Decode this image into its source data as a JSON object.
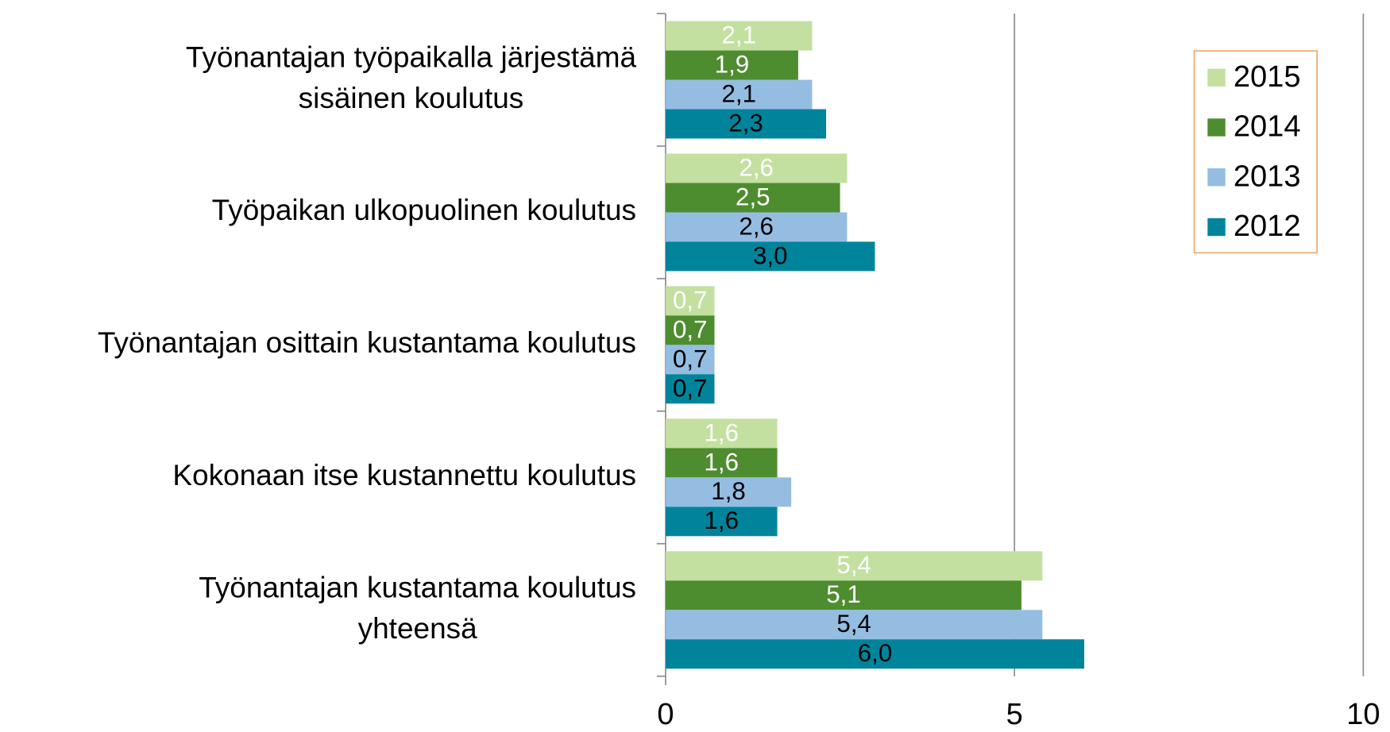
{
  "chart_data": {
    "type": "barh",
    "categories": [
      [
        "Työnantajan työpaikalla järjestämä",
        "sisäinen koulutus"
      ],
      [
        "Työpaikan ulkopuolinen koulutus"
      ],
      [
        "Työnantajan osittain kustantama koulutus"
      ],
      [
        "Kokonaan itse kustannettu koulutus"
      ],
      [
        "Työnantajan kustantama koulutus",
        "yhteensä"
      ]
    ],
    "series": [
      {
        "name": "2015",
        "color": "#c3e0a0",
        "label_color": "#ffffff",
        "values": [
          2.1,
          2.6,
          0.7,
          1.6,
          5.4
        ],
        "value_labels": [
          "2,1",
          "2,6",
          "0,7",
          "1,6",
          "5,4"
        ]
      },
      {
        "name": "2014",
        "color": "#4e8c30",
        "label_color": "#ffffff",
        "values": [
          1.9,
          2.5,
          0.7,
          1.6,
          5.1
        ],
        "value_labels": [
          "1,9",
          "2,5",
          "0,7",
          "1,6",
          "5,1"
        ]
      },
      {
        "name": "2013",
        "color": "#95bde2",
        "label_color": "#000000",
        "values": [
          2.1,
          2.6,
          0.7,
          1.8,
          5.4
        ],
        "value_labels": [
          "2,1",
          "2,6",
          "0,7",
          "1,8",
          "5,4"
        ]
      },
      {
        "name": "2012",
        "color": "#00849c",
        "label_color": "#000000",
        "values": [
          2.3,
          3.0,
          0.7,
          1.6,
          6.0
        ],
        "value_labels": [
          "2,3",
          "3,0",
          "0,7",
          "1,6",
          "6,0"
        ]
      }
    ],
    "xlim": [
      0,
      10
    ],
    "xticks": [
      0,
      5,
      10
    ],
    "grid": true,
    "legend": "upper right"
  }
}
